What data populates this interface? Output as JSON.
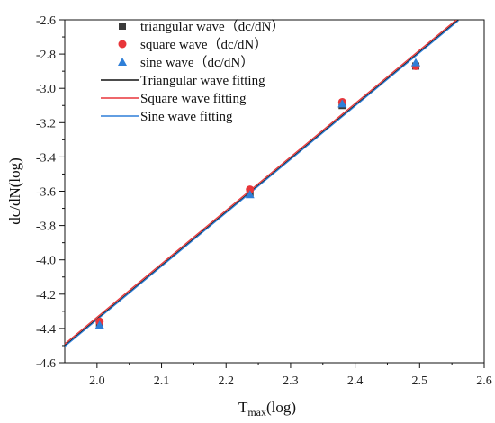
{
  "chart_data": {
    "type": "scatter",
    "title": "",
    "xlabel_main": "T",
    "xlabel_sub": "max",
    "xlabel_suffix": "(log)",
    "ylabel": "dc/dN(log)",
    "xlim": [
      1.95,
      2.6
    ],
    "ylim": [
      -4.6,
      -2.6
    ],
    "xticks": [
      2.0,
      2.1,
      2.2,
      2.3,
      2.4,
      2.5,
      2.6
    ],
    "xtick_labels": [
      "2.0",
      "2.1",
      "2.2",
      "2.3",
      "2.4",
      "2.5",
      "2.6"
    ],
    "yticks": [
      -2.6,
      -2.8,
      -3.0,
      -3.2,
      -3.4,
      -3.6,
      -3.8,
      -4.0,
      -4.2,
      -4.4,
      -4.6
    ],
    "ytick_labels": [
      "-2.6",
      "-2.8",
      "-3.0",
      "-3.2",
      "-3.4",
      "-3.6",
      "-3.8",
      "-4.0",
      "-4.2",
      "-4.4",
      "-4.6"
    ],
    "grid": false,
    "legend_position": "top-left",
    "series": [
      {
        "name": "triangular wave（dc/dN）",
        "kind": "points",
        "marker": "square",
        "color": "#3a3a3a",
        "x": [
          2.004,
          2.237,
          2.38,
          2.494
        ],
        "y": [
          -4.37,
          -3.61,
          -3.1,
          -2.87
        ]
      },
      {
        "name": "square wave（dc/dN）",
        "kind": "points",
        "marker": "circle",
        "color": "#e8353a",
        "x": [
          2.004,
          2.237,
          2.38,
          2.494
        ],
        "y": [
          -4.36,
          -3.59,
          -3.08,
          -2.87
        ]
      },
      {
        "name": "sine wave（dc/dN）",
        "kind": "points",
        "marker": "triangle",
        "color": "#2f7fd8",
        "x": [
          2.004,
          2.237,
          2.38,
          2.494
        ],
        "y": [
          -4.38,
          -3.62,
          -3.09,
          -2.85
        ]
      },
      {
        "name": "Triangular wave fitting",
        "kind": "line",
        "color": "#111111",
        "x": [
          1.95,
          2.56
        ],
        "y": [
          -4.5,
          -2.6
        ]
      },
      {
        "name": "Square wave fitting",
        "kind": "line",
        "color": "#e8353a",
        "x": [
          1.95,
          2.56
        ],
        "y": [
          -4.49,
          -2.59
        ]
      },
      {
        "name": "Sine wave fitting",
        "kind": "line",
        "color": "#2f7fd8",
        "x": [
          1.95,
          2.56
        ],
        "y": [
          -4.505,
          -2.605
        ]
      }
    ]
  }
}
